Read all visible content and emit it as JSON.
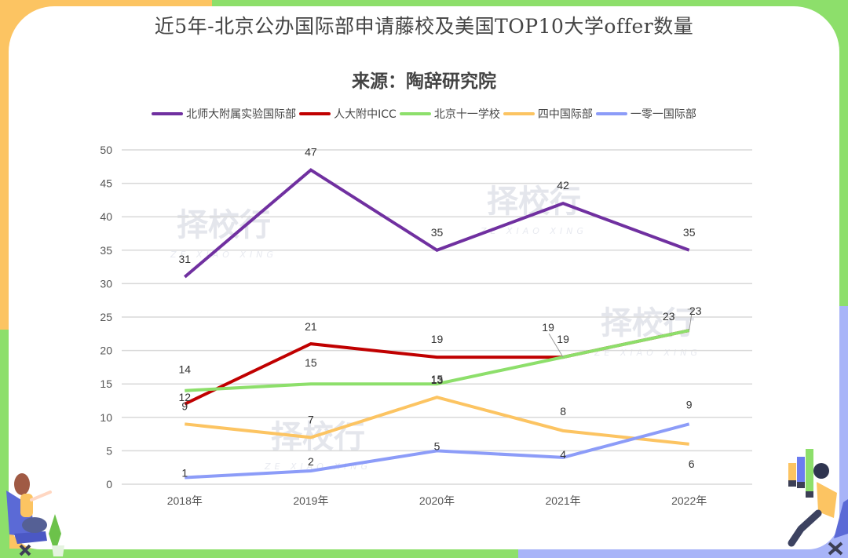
{
  "colors": {
    "bg_orange": "#fcc462",
    "bg_green": "#8ddf6b",
    "bg_lavender": "#a8b4f8"
  },
  "watermark": {
    "text": "择校行",
    "subtext": "ZE XIAO XING"
  },
  "chart_data": {
    "type": "line",
    "title": "近5年-北京公办国际部申请藤校及美国TOP10大学offer数量",
    "subtitle": "来源：陶辞研究院",
    "xlabel": "",
    "ylabel": "",
    "categories": [
      "2018年",
      "2019年",
      "2020年",
      "2021年",
      "2022年"
    ],
    "ylim": [
      0,
      50
    ],
    "yticks": [
      0,
      5,
      10,
      15,
      20,
      25,
      30,
      35,
      40,
      45,
      50
    ],
    "grid": true,
    "legend_position": "top",
    "series": [
      {
        "name": "北师大附属实验国际部",
        "color": "#7030a0",
        "values": [
          31,
          47,
          35,
          42,
          35
        ]
      },
      {
        "name": "人大附中ICC",
        "color": "#c00000",
        "values": [
          12,
          21,
          19,
          19,
          23
        ]
      },
      {
        "name": "北京十一学校",
        "color": "#8ddf6b",
        "values": [
          14,
          15,
          15,
          19,
          23
        ]
      },
      {
        "name": "四中国际部",
        "color": "#fcc462",
        "values": [
          9,
          7,
          13,
          8,
          6
        ]
      },
      {
        "name": "一零一国际部",
        "color": "#8c9cf8",
        "values": [
          1,
          2,
          5,
          4,
          9
        ]
      }
    ]
  }
}
